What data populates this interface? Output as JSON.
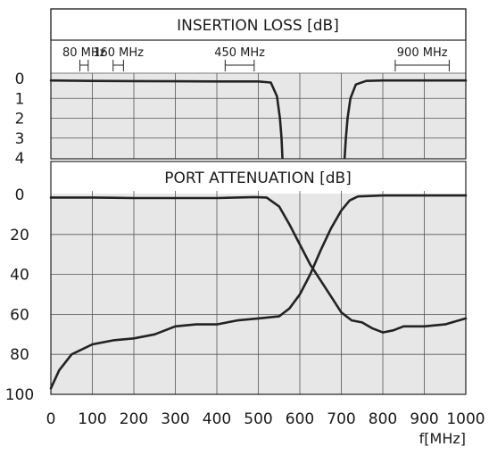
{
  "chart_data": [
    {
      "type": "line",
      "title": "INSERTION LOSS [dB]",
      "xlim": [
        0,
        1000
      ],
      "ylim": [
        0,
        4
      ],
      "y_inverted": true,
      "y_ticks": [
        "0",
        "1",
        "2",
        "3",
        "4"
      ],
      "grid": true,
      "bands": [
        {
          "label": "80 MHz",
          "range": [
            70,
            90
          ]
        },
        {
          "label": "160 MHz",
          "range": [
            150,
            175
          ]
        },
        {
          "label": "450 MHz",
          "range": [
            420,
            490
          ]
        },
        {
          "label": "900 MHz",
          "range": [
            830,
            960
          ]
        }
      ],
      "series": [
        {
          "x": [
            0,
            100,
            200,
            300,
            400,
            500,
            530,
            545,
            552,
            556,
            558
          ],
          "y": [
            0.1,
            0.12,
            0.13,
            0.14,
            0.15,
            0.15,
            0.2,
            0.9,
            2.0,
            3.0,
            4.0
          ]
        },
        {
          "x": [
            708,
            711,
            715,
            722,
            735,
            760,
            800,
            900,
            1000
          ],
          "y": [
            4.0,
            3.0,
            2.0,
            1.0,
            0.3,
            0.12,
            0.1,
            0.1,
            0.1
          ]
        }
      ]
    },
    {
      "type": "line",
      "title": "PORT ATTENUATION [dB]",
      "xlim": [
        0,
        1000
      ],
      "ylim": [
        0,
        100
      ],
      "y_inverted": true,
      "x_ticks": [
        "0",
        "100",
        "200",
        "300",
        "400",
        "500",
        "600",
        "700",
        "800",
        "900",
        "1000"
      ],
      "y_ticks": [
        "0",
        "20",
        "40",
        "60",
        "80",
        "100"
      ],
      "xlabel": "f[MHz]",
      "grid": true,
      "series": [
        {
          "x": [
            0,
            100,
            200,
            300,
            400,
            490,
            520,
            550,
            575,
            600,
            625,
            650,
            675,
            700,
            725,
            750,
            775,
            800,
            825,
            850,
            900,
            950,
            1000
          ],
          "y": [
            1.5,
            1.5,
            1.8,
            1.8,
            1.8,
            1.3,
            1.5,
            6,
            15,
            25,
            35,
            43,
            51,
            59,
            63,
            64,
            67,
            69,
            68,
            66,
            66,
            65,
            62
          ]
        },
        {
          "x": [
            0,
            20,
            50,
            100,
            150,
            200,
            250,
            300,
            350,
            400,
            450,
            500,
            550,
            575,
            600,
            625,
            650,
            675,
            700,
            720,
            740,
            800,
            900,
            1000
          ],
          "y": [
            97,
            88,
            80,
            75,
            73,
            72,
            70,
            66,
            65,
            65,
            63,
            62,
            61,
            57,
            50,
            40,
            28,
            17,
            8,
            3,
            1,
            0.5,
            0.5,
            0.5
          ]
        }
      ]
    }
  ]
}
